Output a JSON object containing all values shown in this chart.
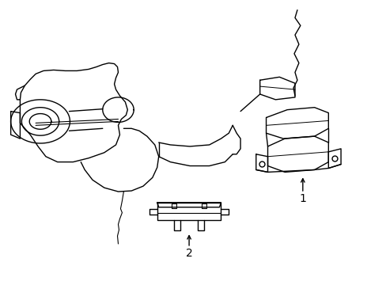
{
  "background_color": "#ffffff",
  "line_color": "#000000",
  "line_width": 1.0,
  "fig_width": 4.89,
  "fig_height": 3.6,
  "dpi": 100
}
